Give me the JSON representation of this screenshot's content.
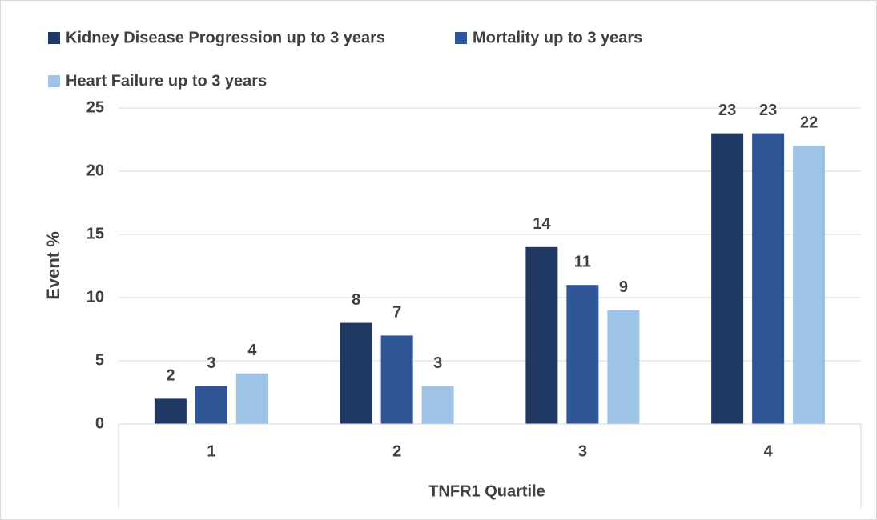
{
  "chart_data": {
    "type": "bar",
    "categories": [
      "1",
      "2",
      "3",
      "4"
    ],
    "series": [
      {
        "name": "Kidney Disease Progression up to 3 years",
        "color": "#203864",
        "values": [
          2,
          8,
          14,
          23
        ]
      },
      {
        "name": "Mortality up to 3 years",
        "color": "#2f5597",
        "values": [
          3,
          7,
          11,
          23
        ]
      },
      {
        "name": "Heart Failure up to 3 years",
        "color": "#9dc3e6",
        "values": [
          4,
          3,
          9,
          22
        ]
      }
    ],
    "ylim": [
      0,
      25
    ],
    "yticks": [
      0,
      5,
      10,
      15,
      20,
      25
    ],
    "ylabel": "Event %",
    "xlabel": "TNFR1 Quartile",
    "grid": true,
    "legend": "top-left"
  }
}
